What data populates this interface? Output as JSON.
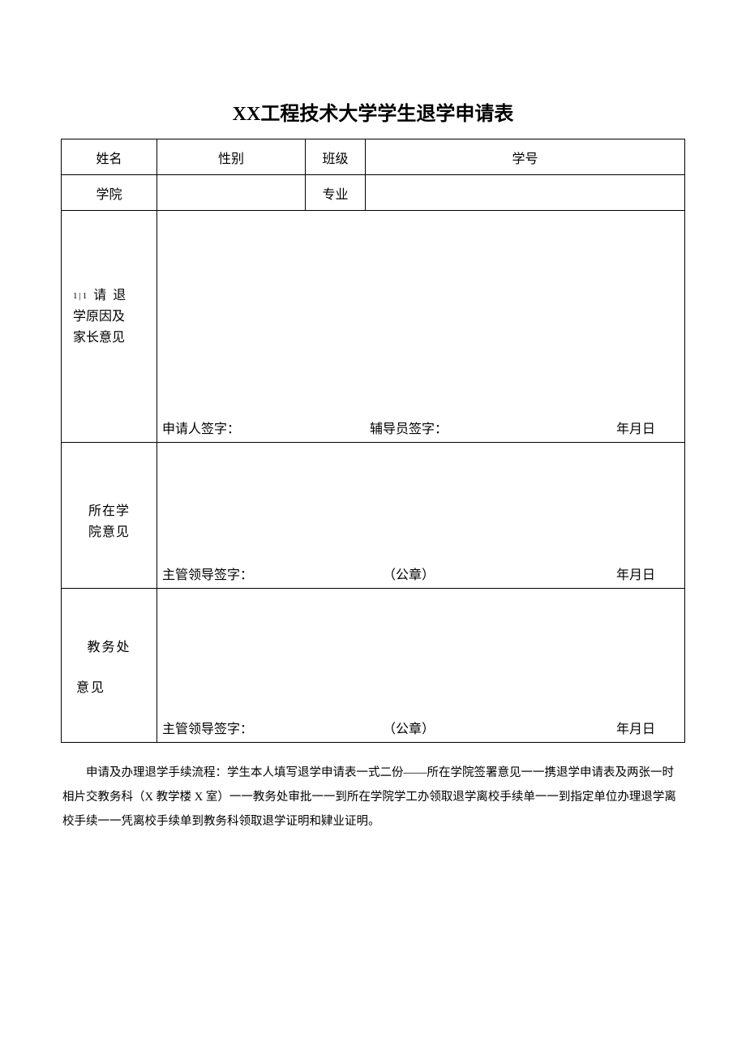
{
  "title_prefix": "XX",
  "title_rest": "工程技术大学学生退学申请表",
  "rows": {
    "r1": {
      "c1": "姓名",
      "c2": "性别",
      "c3": "班级",
      "c4": "学号"
    },
    "r2": {
      "c1": "学院",
      "c2": "专业"
    }
  },
  "reason": {
    "sup": "1|1",
    "label_top": " 请 退",
    "label_line2": "学原因及",
    "label_line3": "家长意见",
    "sig_left": "申请人签字：",
    "sig_mid": "辅导员签字：",
    "sig_right": "年月日"
  },
  "opinion1": {
    "label_line1": "所在学",
    "label_line2": "院意见",
    "sig_left": "主管领导签字：",
    "sig_mid": "（公章）",
    "sig_right": "年月日"
  },
  "opinion2": {
    "label_line1": "教务处",
    "label_line2": "意见",
    "sig_left": "主管领导签字：",
    "sig_mid": "（公章）",
    "sig_right": "年月日"
  },
  "footer": "申请及办理退学手续流程：学生本人填写退学申请表一式二份——所在学院签署意见一一携退学申请表及两张一时相片交教务科（X 教学楼 X 室）一一教务处审批一一到所在学院学工办领取退学离校手续单一一到指定单位办理退学离校手续一一凭离校手续单到教务科领取退学证明和肄业证明。"
}
